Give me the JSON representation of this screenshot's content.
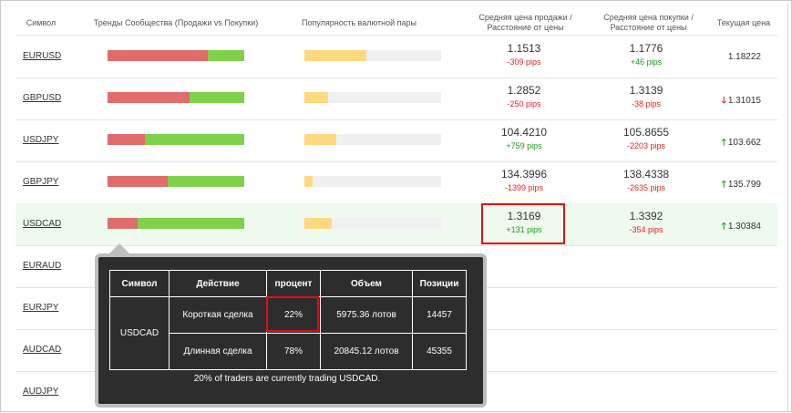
{
  "header": {
    "symbol": "Символ",
    "trends": "Тренды Сообщества (Продажи vs Покупки)",
    "popularity": "Популярность валютной пары",
    "avg_sell_1": "Средняя цена продажи /",
    "avg_sell_2": "Расстояние от цены",
    "avg_buy_1": "Средняя цена покупки /",
    "avg_buy_2": "Расстояние от цены",
    "current": "Текущая цена"
  },
  "rows": [
    {
      "symbol": "EURUSD",
      "sell_pct": 0.73,
      "popularity": 0.45,
      "sell_price": "1.1513",
      "sell_pips": "-309 pips",
      "sell_pips_color": "red",
      "buy_price": "1.1776",
      "buy_pips": "+46 pips",
      "buy_pips_color": "green",
      "current": "1.18222",
      "dir": "none"
    },
    {
      "symbol": "GBPUSD",
      "sell_pct": 0.6,
      "popularity": 0.17,
      "sell_price": "1.2852",
      "sell_pips": "-250 pips",
      "sell_pips_color": "red",
      "buy_price": "1.3139",
      "buy_pips": "-38 pips",
      "buy_pips_color": "red",
      "current": "1.31015",
      "dir": "down"
    },
    {
      "symbol": "USDJPY",
      "sell_pct": 0.27,
      "popularity": 0.23,
      "sell_price": "104.4210",
      "sell_pips": "+759 pips",
      "sell_pips_color": "green",
      "buy_price": "105.8655",
      "buy_pips": "-2203 pips",
      "buy_pips_color": "red",
      "current": "103.662",
      "dir": "up"
    },
    {
      "symbol": "GBPJPY",
      "sell_pct": 0.44,
      "popularity": 0.06,
      "sell_price": "134.3996",
      "sell_pips": "-1399 pips",
      "sell_pips_color": "red",
      "buy_price": "138.4338",
      "buy_pips": "-2635 pips",
      "buy_pips_color": "red",
      "current": "135.799",
      "dir": "up"
    },
    {
      "symbol": "USDCAD",
      "sell_pct": 0.22,
      "popularity": 0.2,
      "sell_price": "1.3169",
      "sell_pips": "+131 pips",
      "sell_pips_color": "green",
      "buy_price": "1.3392",
      "buy_pips": "-354 pips",
      "buy_pips_color": "red",
      "current": "1.30384",
      "dir": "up"
    },
    {
      "symbol": "EURAUD"
    },
    {
      "symbol": "EURJPY"
    },
    {
      "symbol": "AUDCAD"
    },
    {
      "symbol": "AUDJPY"
    }
  ],
  "arrows": {
    "up": "🡑",
    "down": "🡓"
  },
  "colors": {
    "sell": "#e06c6c",
    "buy": "#7fd14b",
    "popularity": "#ffd980",
    "highlight_row": "#eefaee",
    "annotation_box": "#e01010"
  },
  "tooltip": {
    "headers": {
      "symbol": "Символ",
      "action": "Действие",
      "percent": "процент",
      "volume": "Объем",
      "positions": "Позиции"
    },
    "symbol": "USDCAD",
    "short": {
      "action": "Короткая сделка",
      "percent": "22%",
      "volume": "5975.36 лотов",
      "positions": "14457"
    },
    "long": {
      "action": "Длинная сделка",
      "percent": "78%",
      "volume": "20845.12 лотов",
      "positions": "45355"
    },
    "footer": "20% of traders are currently trading USDCAD."
  }
}
